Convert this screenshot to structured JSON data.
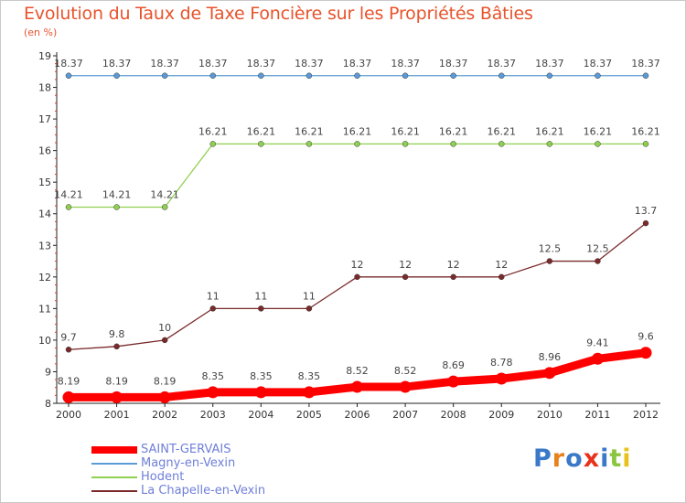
{
  "title": "Evolution du Taux de Taxe Foncière sur les Propriétés Bâties",
  "subtitle": "(en %)",
  "logo": {
    "text": "Proxiti",
    "letter_colors": [
      "#3a78c8",
      "#e8821c",
      "#3a78c8",
      "#e8321c",
      "#3a78c8",
      "#8cc63f",
      "#e8c21c"
    ]
  },
  "chart_data": {
    "type": "line",
    "x": [
      "2000",
      "2001",
      "2002",
      "2003",
      "2004",
      "2005",
      "2006",
      "2007",
      "2008",
      "2009",
      "2010",
      "2011",
      "2012"
    ],
    "ylim": [
      8,
      19
    ],
    "yticks": [
      "8",
      "9",
      "10",
      "11",
      "12",
      "13",
      "14",
      "15",
      "16",
      "17",
      "18",
      "19"
    ],
    "grid": false,
    "legend_position": "bottom-left",
    "series": [
      {
        "name": "SAINT-GERVAIS",
        "color": "#ff0000",
        "values": [
          8.19,
          8.19,
          8.19,
          8.35,
          8.35,
          8.35,
          8.52,
          8.52,
          8.69,
          8.78,
          8.96,
          9.41,
          9.6
        ],
        "labels": [
          "8.19",
          "8.19",
          "8.19",
          "8.35",
          "8.35",
          "8.35",
          "8.52",
          "8.52",
          "8.69",
          "8.78",
          "8.96",
          "9.41",
          "9.6"
        ]
      },
      {
        "name": "Magny-en-Vexin",
        "color": "#5b9bd5",
        "values": [
          18.37,
          18.37,
          18.37,
          18.37,
          18.37,
          18.37,
          18.37,
          18.37,
          18.37,
          18.37,
          18.37,
          18.37,
          18.37
        ],
        "labels": [
          "18.37",
          "18.37",
          "18.37",
          "18.37",
          "18.37",
          "18.37",
          "18.37",
          "18.37",
          "18.37",
          "18.37",
          "18.37",
          "18.37",
          "18.37"
        ]
      },
      {
        "name": "Hodent",
        "color": "#90d050",
        "values": [
          14.21,
          14.21,
          14.21,
          16.21,
          16.21,
          16.21,
          16.21,
          16.21,
          16.21,
          16.21,
          16.21,
          16.21,
          16.21
        ],
        "labels": [
          "14.21",
          "14.21",
          "14.21",
          "16.21",
          "16.21",
          "16.21",
          "16.21",
          "16.21",
          "16.21",
          "16.21",
          "16.21",
          "16.21",
          "16.21"
        ]
      },
      {
        "name": "La Chapelle-en-Vexin",
        "color": "#7a2a2a",
        "values": [
          9.7,
          9.8,
          10,
          11,
          11,
          11,
          12,
          12,
          12,
          12,
          12.5,
          12.5,
          13.7
        ],
        "labels": [
          "9.7",
          "9.8",
          "10",
          "11",
          "11",
          "11",
          "12",
          "12",
          "12",
          "12",
          "12.5",
          "12.5",
          "13.7"
        ]
      }
    ]
  }
}
